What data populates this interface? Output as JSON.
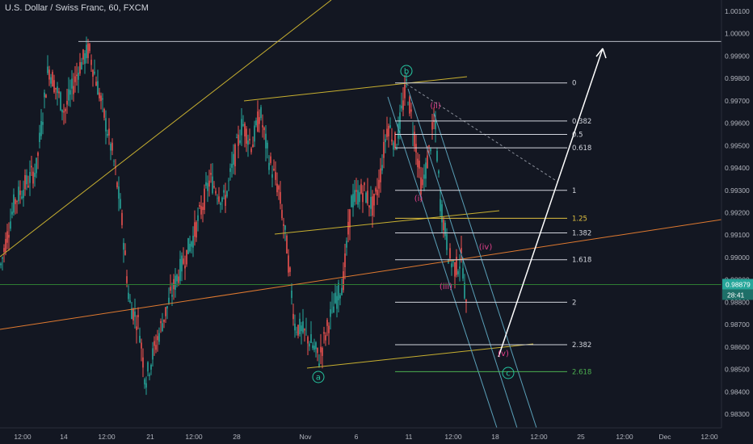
{
  "header": {
    "symbol_title": "U.S. Dollar / Swiss Franc, 60, FXCM"
  },
  "colors": {
    "background": "#131722",
    "up_candle": "#26a69a",
    "down_candle": "#ef5350",
    "fib_line": "#d1d4dc",
    "fib_125": "#e0c040",
    "fib_2618": "#4caf50",
    "trend_yellow": "#c8b030",
    "trend_orange": "#e07a30",
    "channel_blue": "#5aa0b8",
    "wave_pink": "#e0408a",
    "wave_teal": "#26c6a0",
    "arrow": "#ffffff",
    "current_price_bg": "#26a69a"
  },
  "price_axis": {
    "ticks": [
      "1.00100",
      "1.00000",
      "0.99900",
      "0.99800",
      "0.99700",
      "0.99600",
      "0.99500",
      "0.99400",
      "0.99300",
      "0.99200",
      "0.99100",
      "0.99000",
      "0.98900",
      "0.98800",
      "0.98700",
      "0.98600",
      "0.98500",
      "0.98400",
      "0.98300"
    ],
    "current_price": "0.98879",
    "countdown": "28:41"
  },
  "time_axis": {
    "labels": [
      "12:00",
      "14",
      "12:00",
      "21",
      "12:00",
      "28",
      "Nov",
      "6",
      "11",
      "12:00",
      "18",
      "12:00",
      "25",
      "12:00",
      "Dec",
      "12:00"
    ]
  },
  "chart_data": {
    "type": "candlestick",
    "title": "U.S. Dollar / Swiss Franc, 60, FXCM",
    "ylim": [
      0.9825,
      1.0014
    ],
    "current_price": 0.98879,
    "fib_levels": [
      {
        "label": "0",
        "value": 0.9978
      },
      {
        "label": "0.382",
        "value": 0.9961
      },
      {
        "label": "0.5",
        "value": 0.9955
      },
      {
        "label": "0.618",
        "value": 0.9949
      },
      {
        "label": "1",
        "value": 0.993
      },
      {
        "label": "1.25",
        "value": 0.99175
      },
      {
        "label": "1.382",
        "value": 0.9911
      },
      {
        "label": "1.618",
        "value": 0.9899
      },
      {
        "label": "2",
        "value": 0.988
      },
      {
        "label": "2.382",
        "value": 0.9861
      },
      {
        "label": "2.618",
        "value": 0.9849
      }
    ],
    "wave_labels": [
      {
        "text": "b",
        "price": 0.9978
      },
      {
        "text": "a",
        "price": 0.9851
      },
      {
        "text": "c",
        "price": 0.9849
      },
      {
        "text": "(i)",
        "price": 0.993
      },
      {
        "text": "(ii)",
        "price": 0.9965
      },
      {
        "text": "(iii)",
        "price": 0.9886
      },
      {
        "text": "(iv)",
        "price": 0.9904
      },
      {
        "text": "(v)",
        "price": 0.9858
      }
    ],
    "horizontal_line": 0.99965
  }
}
